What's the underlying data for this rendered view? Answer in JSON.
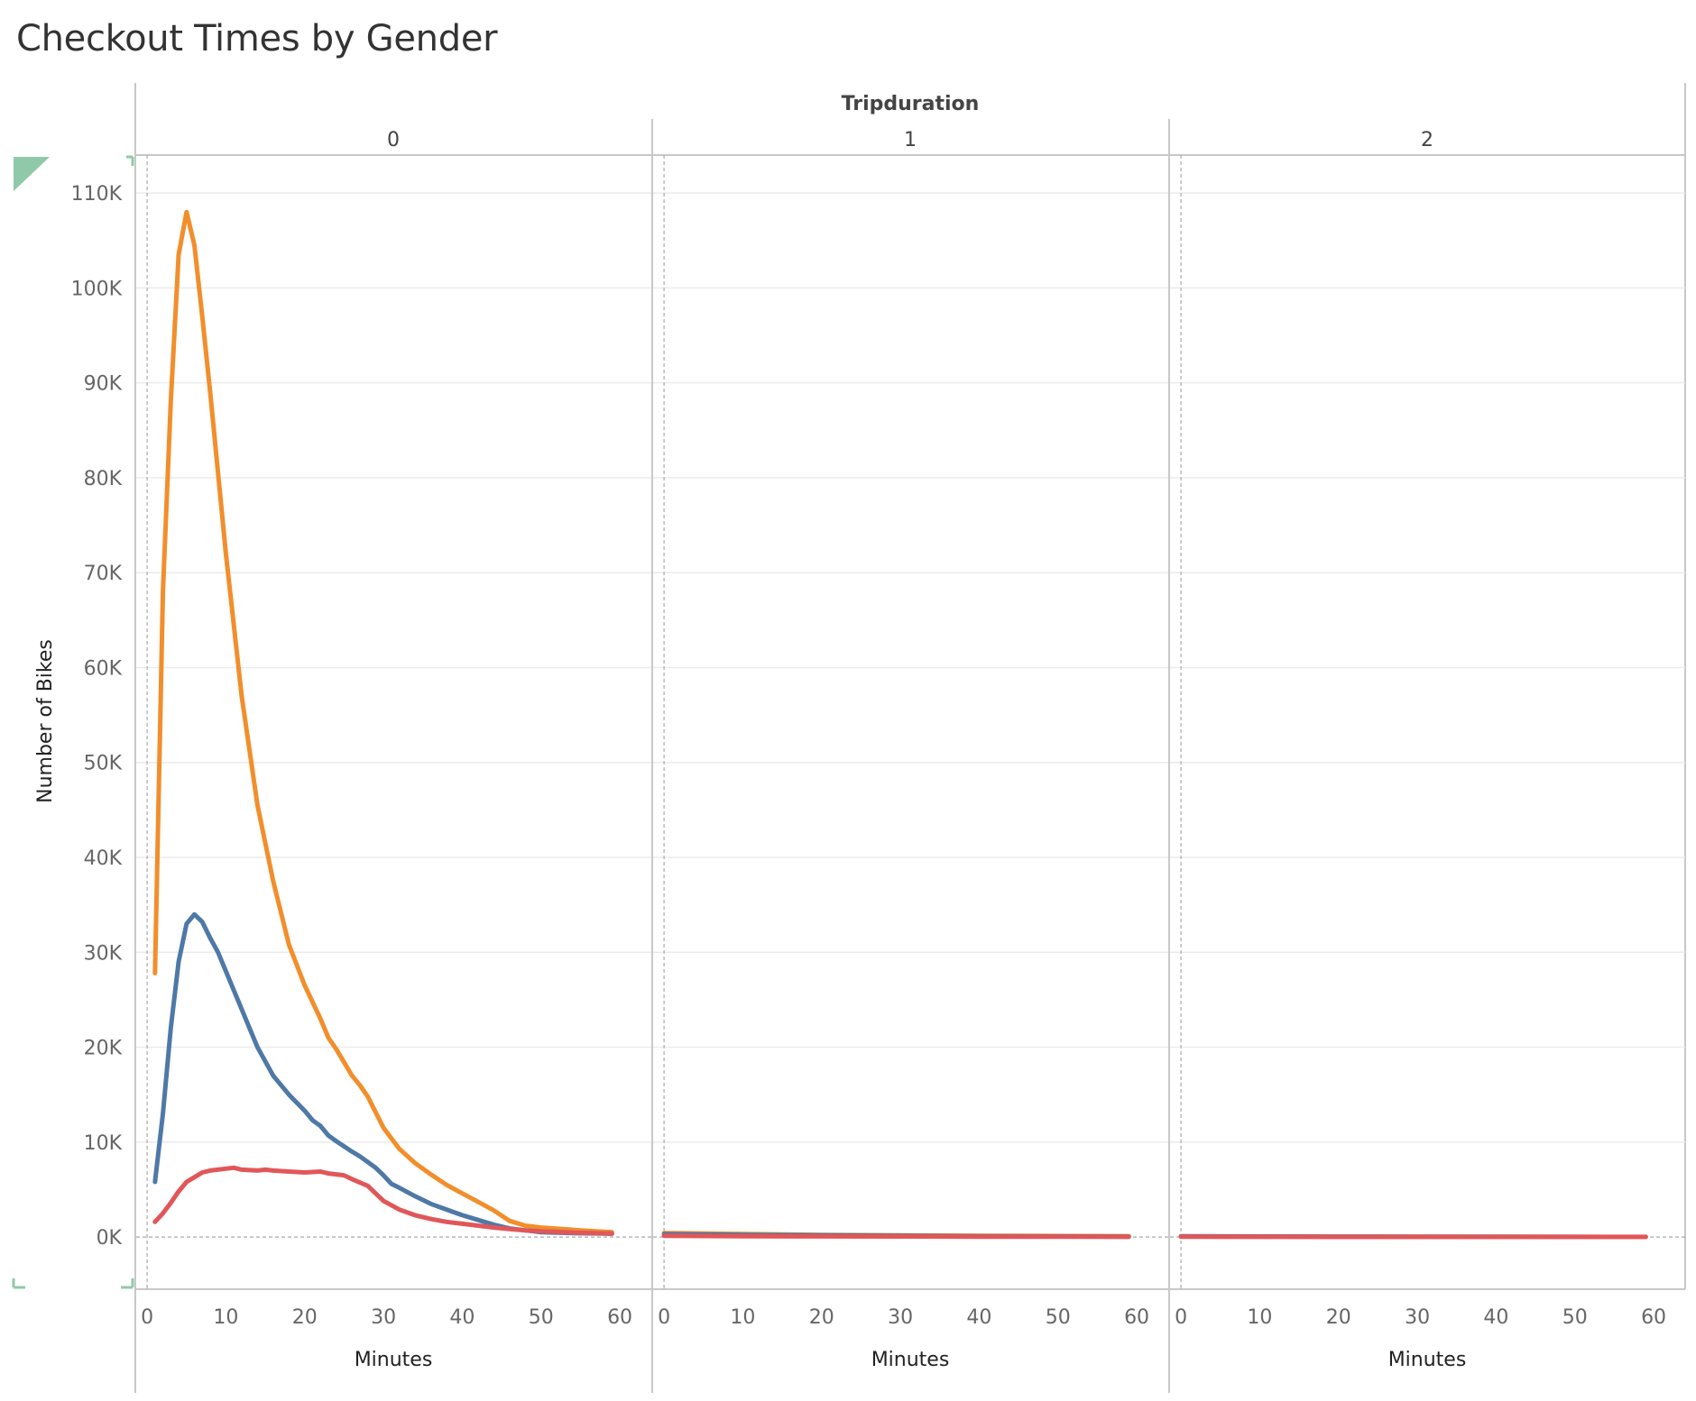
{
  "chart_data": {
    "type": "line",
    "title": "Checkout Times by Gender",
    "facet_label": "Tripduration",
    "facets": [
      "0",
      "1",
      "2"
    ],
    "xlabel": "Minutes",
    "ylabel": "Number of Bikes",
    "xlim": [
      -1.5,
      64
    ],
    "ylim": [
      -5500,
      114000
    ],
    "xticks": [
      0,
      10,
      20,
      30,
      40,
      50,
      60
    ],
    "yticks": [
      0,
      10000,
      20000,
      30000,
      40000,
      50000,
      60000,
      70000,
      80000,
      90000,
      100000,
      110000
    ],
    "ytick_labels": [
      "0K",
      "10K",
      "20K",
      "30K",
      "40K",
      "50K",
      "60K",
      "70K",
      "80K",
      "90K",
      "100K",
      "110K"
    ],
    "grid": true,
    "legend": "none",
    "series": [
      {
        "color": "#f28e2b",
        "panels": [
          {
            "x": [
              1,
              2,
              3,
              4,
              5,
              6,
              7,
              8,
              10,
              12,
              14,
              16,
              18,
              20,
              22,
              23,
              24,
              26,
              27,
              28,
              30,
              32,
              34,
              36,
              38,
              40,
              42,
              44,
              46,
              48,
              50,
              55,
              59
            ],
            "y": [
              27800,
              68000,
              88000,
              103500,
              108000,
              104500,
              97000,
              89000,
              72000,
              57000,
              45500,
              37500,
              30800,
              26500,
              23000,
              21000,
              19800,
              17000,
              16000,
              14800,
              11500,
              9300,
              7800,
              6600,
              5500,
              4600,
              3700,
              2800,
              1700,
              1200,
              1000,
              700,
              500
            ]
          },
          {
            "x": [
              0,
              10,
              20,
              30,
              40,
              50,
              59
            ],
            "y": [
              420,
              310,
              230,
              170,
              130,
              100,
              80
            ]
          },
          {
            "x": [
              0,
              10,
              20,
              30,
              40,
              50,
              59
            ],
            "y": [
              60,
              45,
              35,
              28,
              22,
              18,
              15
            ]
          }
        ]
      },
      {
        "color": "#4e79a7",
        "panels": [
          {
            "x": [
              1,
              2,
              3,
              4,
              5,
              6,
              7,
              8,
              9,
              10,
              12,
              14,
              16,
              18,
              20,
              21,
              22,
              23,
              24,
              26,
              27,
              28,
              29,
              30,
              31,
              32,
              34,
              36,
              38,
              40,
              42,
              44,
              46,
              48,
              50,
              55,
              59
            ],
            "y": [
              5800,
              13000,
              22000,
              29000,
              33000,
              34000,
              33200,
              31500,
              30000,
              28000,
              24000,
              20000,
              17000,
              15000,
              13300,
              12300,
              11700,
              10700,
              10100,
              9000,
              8500,
              7900,
              7300,
              6500,
              5600,
              5200,
              4300,
              3500,
              2900,
              2300,
              1800,
              1300,
              900,
              700,
              500,
              400,
              350
            ]
          },
          {
            "x": [
              0,
              10,
              20,
              30,
              40,
              50,
              59
            ],
            "y": [
              300,
              220,
              170,
              120,
              90,
              70,
              50
            ]
          },
          {
            "x": [
              0,
              10,
              20,
              30,
              40,
              50,
              59
            ],
            "y": [
              80,
              60,
              45,
              35,
              25,
              18,
              12
            ]
          }
        ]
      },
      {
        "color": "#e15759",
        "panels": [
          {
            "x": [
              1,
              2,
              3,
              4,
              5,
              6,
              7,
              8,
              10,
              11,
              12,
              14,
              15,
              16,
              18,
              20,
              22,
              23,
              24,
              25,
              26,
              28,
              30,
              32,
              34,
              36,
              38,
              40,
              42,
              44,
              46,
              48,
              50,
              55,
              59
            ],
            "y": [
              1600,
              2500,
              3600,
              4800,
              5800,
              6300,
              6800,
              7000,
              7200,
              7300,
              7100,
              7000,
              7100,
              7000,
              6900,
              6800,
              6900,
              6700,
              6600,
              6500,
              6100,
              5400,
              3800,
              2900,
              2300,
              1900,
              1600,
              1400,
              1200,
              1000,
              850,
              700,
              600,
              450,
              350
            ]
          },
          {
            "x": [
              0,
              10,
              20,
              30,
              40,
              50,
              59
            ],
            "y": [
              120,
              90,
              70,
              55,
              40,
              30,
              20
            ]
          },
          {
            "x": [
              0,
              10,
              20,
              30,
              40,
              50,
              59
            ],
            "y": [
              25,
              18,
              14,
              10,
              8,
              6,
              5
            ]
          }
        ]
      }
    ]
  }
}
